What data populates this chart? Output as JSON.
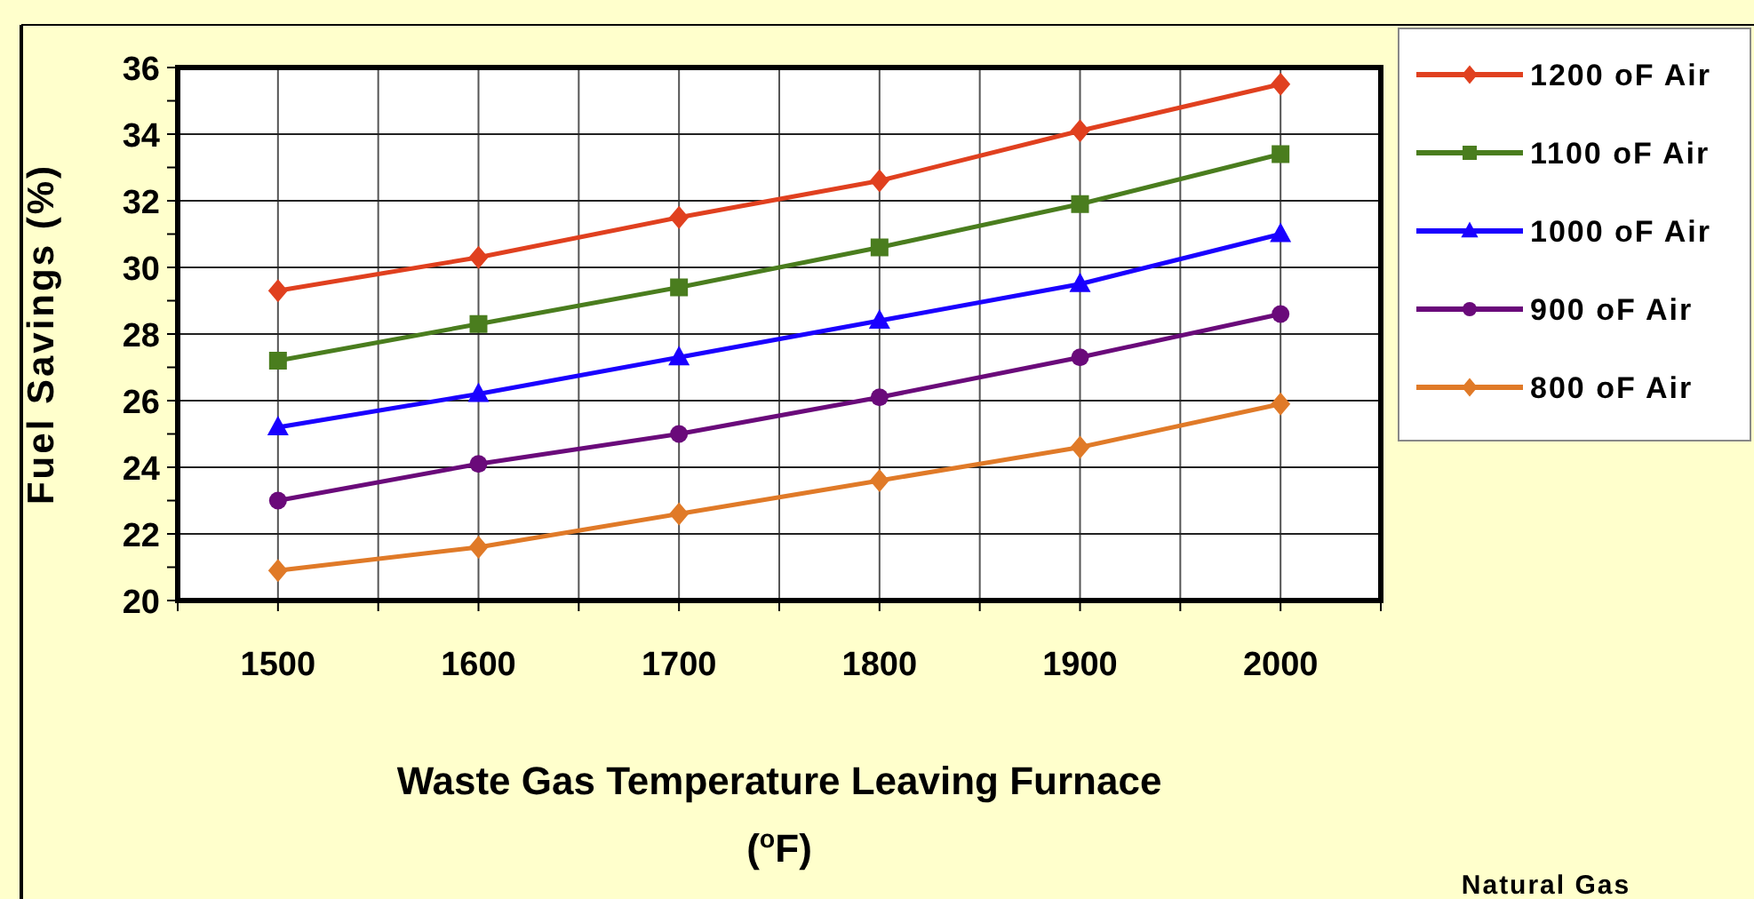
{
  "chart_data": {
    "type": "line",
    "xlabel": "Waste Gas Temperature Leaving Furnace\n($^{o}$F)",
    "ylabel": "Fuel Savings (%)",
    "x": [
      1500,
      1600,
      1700,
      1800,
      1900,
      2000
    ],
    "xlim": [
      1450,
      2050
    ],
    "xticks": [
      {
        "value": 1450,
        "label": null
      },
      1500,
      {
        "value": 1550,
        "label": null
      },
      1600,
      {
        "value": 1650,
        "label": null
      },
      1700,
      {
        "value": 1750,
        "label": null
      },
      1800,
      {
        "value": 1850,
        "label": null
      },
      1900,
      {
        "value": 1950,
        "label": null
      },
      2000,
      {
        "value": 2050,
        "label": null
      }
    ],
    "ylim": [
      20,
      36
    ],
    "yticks": [
      20,
      {
        "value": 21,
        "label": null
      },
      22,
      {
        "value": 23,
        "label": null
      },
      24,
      {
        "value": 25,
        "label": null
      },
      26,
      {
        "value": 27,
        "label": null
      },
      28,
      {
        "value": 29,
        "label": null
      },
      30,
      {
        "value": 31,
        "label": null
      },
      32,
      {
        "value": 33,
        "label": null
      },
      34,
      {
        "value": 35,
        "label": null
      },
      36
    ],
    "grid": true,
    "legend": "right",
    "line_style": "solid",
    "series": [
      {
        "name": "1200 oF Air",
        "color": "#e0401f",
        "marker": "diamond",
        "values": [
          29.3,
          30.3,
          31.5,
          32.6,
          34.1,
          35.5
        ]
      },
      {
        "name": "1100 oF Air",
        "color": "#4a7d1e",
        "marker": "square",
        "values": [
          27.2,
          28.3,
          29.4,
          30.6,
          31.9,
          33.4
        ]
      },
      {
        "name": "1000 oF Air",
        "color": "#1a00ff",
        "marker": "triangle",
        "values": [
          25.2,
          26.2,
          27.3,
          28.4,
          29.5,
          31.0
        ]
      },
      {
        "name": "900 oF Air",
        "color": "#6a0a7a",
        "marker": "circle",
        "values": [
          23.0,
          24.1,
          25.0,
          26.1,
          27.3,
          28.6
        ]
      },
      {
        "name": "800 oF Air",
        "color": "#e07a28",
        "marker": "diamond",
        "values": [
          20.9,
          21.6,
          22.6,
          23.6,
          24.6,
          25.9
        ]
      }
    ],
    "annotations": [
      "Natural Gas"
    ]
  }
}
